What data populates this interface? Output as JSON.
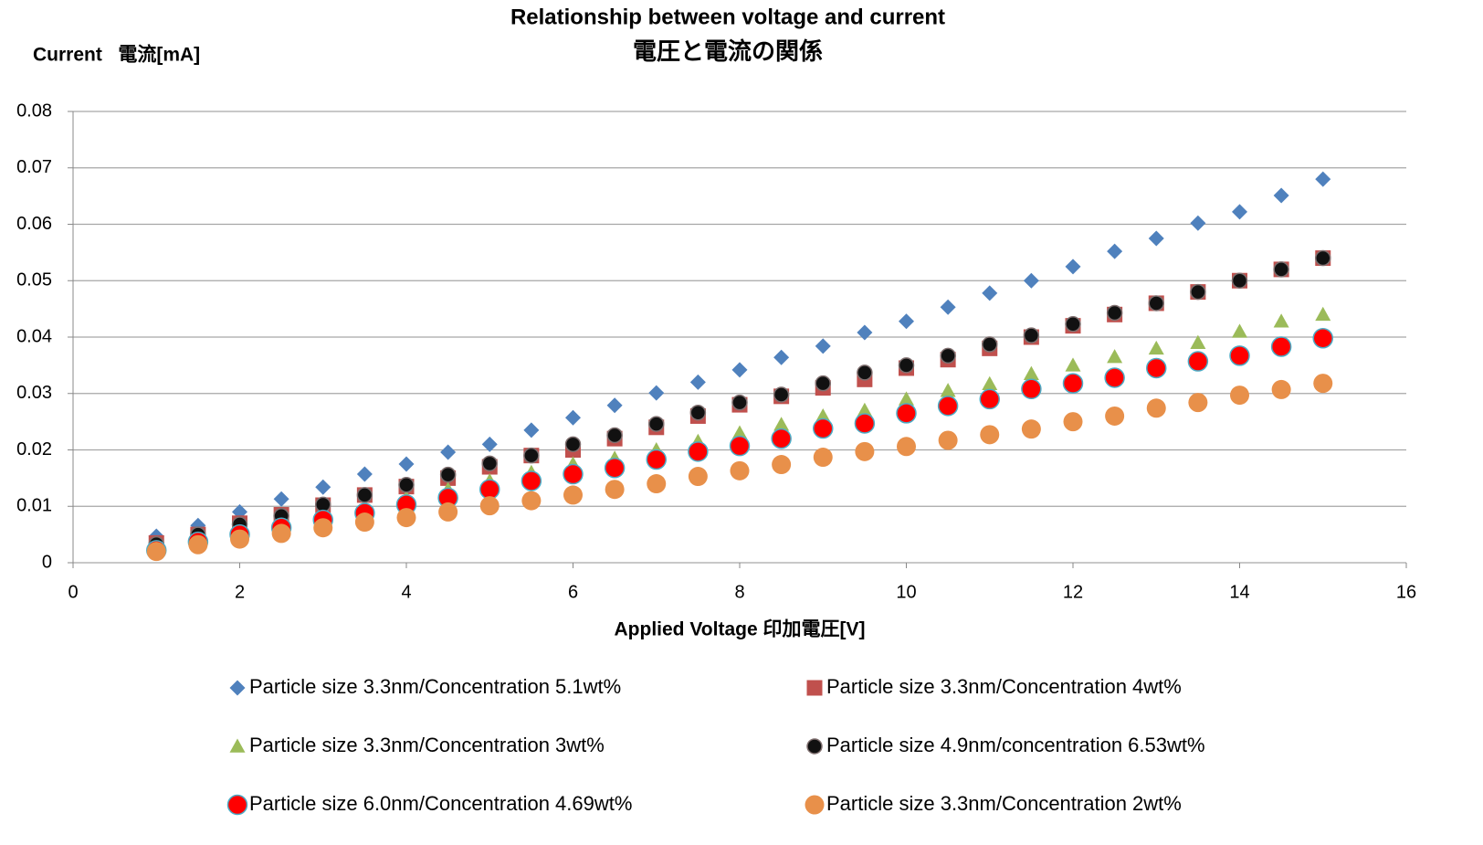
{
  "chart_data": {
    "type": "scatter",
    "title": "Relationship between voltage and current",
    "subtitle": "電圧と電流の関係",
    "y_label": "Current   電流[mA]",
    "x_label": "Applied Voltage 印加電圧[V]",
    "x": [
      1,
      1.5,
      2,
      2.5,
      3,
      3.5,
      4,
      4.5,
      5,
      5.5,
      6,
      6.5,
      7,
      7.5,
      8,
      8.5,
      9,
      9.5,
      10,
      10.5,
      11,
      11.5,
      12,
      12.5,
      13,
      13.5,
      14,
      14.5,
      15
    ],
    "xlim": [
      0,
      16
    ],
    "xticks": [
      0,
      2,
      4,
      6,
      8,
      10,
      12,
      14,
      16
    ],
    "ylim": [
      0,
      0.08
    ],
    "yticks": [
      0,
      0.01,
      0.02,
      0.03,
      0.04,
      0.05,
      0.06,
      0.07,
      0.08
    ],
    "grid": true,
    "legend": "bottom",
    "series": [
      {
        "name": "Particle size 3.3nm/Concentration 5.1wt%",
        "color": "#4f81bd",
        "marker": "diamond",
        "values": [
          0.0047,
          0.0066,
          0.009,
          0.0113,
          0.0134,
          0.0157,
          0.0175,
          0.0196,
          0.021,
          0.0235,
          0.0257,
          0.0279,
          0.0301,
          0.032,
          0.0342,
          0.0364,
          0.0384,
          0.0408,
          0.0428,
          0.0453,
          0.0478,
          0.05,
          0.0525,
          0.0552,
          0.0575,
          0.0602,
          0.0622,
          0.0651,
          0.068
        ]
      },
      {
        "name": "Particle size 3.3nm/Concentration 4wt%",
        "color": "#c0504d",
        "marker": "square",
        "values": [
          0.0035,
          0.005,
          0.007,
          0.0085,
          0.0102,
          0.012,
          0.0135,
          0.015,
          0.017,
          0.019,
          0.02,
          0.022,
          0.024,
          0.026,
          0.028,
          0.0295,
          0.031,
          0.0325,
          0.0345,
          0.036,
          0.038,
          0.04,
          0.042,
          0.044,
          0.046,
          0.048,
          0.05,
          0.052,
          0.054
        ]
      },
      {
        "name": "Particle size 3.3nm/Concentration 3wt%",
        "color": "#9bbb59",
        "marker": "triangle",
        "values": [
          0.003,
          0.0045,
          0.006,
          0.007,
          0.0085,
          0.01,
          0.0115,
          0.013,
          0.0145,
          0.016,
          0.0175,
          0.0185,
          0.02,
          0.0215,
          0.023,
          0.0245,
          0.026,
          0.027,
          0.029,
          0.0305,
          0.0317,
          0.0335,
          0.035,
          0.0365,
          0.038,
          0.039,
          0.041,
          0.0428,
          0.044
        ]
      },
      {
        "name": "Particle size 4.9nm/concentration 6.53wt%",
        "color": "#111111",
        "edgecolor": "#7f6f6f",
        "marker": "circle",
        "values": [
          0.0033,
          0.005,
          0.0068,
          0.0083,
          0.0103,
          0.012,
          0.0138,
          0.0156,
          0.0176,
          0.019,
          0.021,
          0.0226,
          0.0246,
          0.0266,
          0.0284,
          0.0298,
          0.0318,
          0.0337,
          0.035,
          0.0367,
          0.0387,
          0.0403,
          0.0423,
          0.0443,
          0.046,
          0.048,
          0.05,
          0.052,
          0.054
        ]
      },
      {
        "name": "Particle size 6.0nm/Concentration 4.69wt%",
        "color": "#ff0000",
        "edgecolor": "#4bacc6",
        "marker": "circle",
        "values": [
          0.0022,
          0.0037,
          0.005,
          0.0062,
          0.0076,
          0.0088,
          0.0103,
          0.0115,
          0.013,
          0.0145,
          0.0157,
          0.0168,
          0.0183,
          0.0197,
          0.0207,
          0.022,
          0.0238,
          0.0247,
          0.0265,
          0.0278,
          0.029,
          0.0308,
          0.0318,
          0.0328,
          0.0345,
          0.0357,
          0.0367,
          0.0383,
          0.0398
        ]
      },
      {
        "name": "Particle size 3.3nm/Concentration 2wt%",
        "color": "#e8904a",
        "marker": "circle",
        "values": [
          0.002,
          0.0032,
          0.0042,
          0.0052,
          0.0062,
          0.0072,
          0.008,
          0.009,
          0.0101,
          0.011,
          0.012,
          0.013,
          0.014,
          0.0153,
          0.0163,
          0.0174,
          0.0187,
          0.0197,
          0.0206,
          0.0217,
          0.0227,
          0.0237,
          0.025,
          0.026,
          0.0274,
          0.0284,
          0.0297,
          0.0307,
          0.0318
        ]
      }
    ]
  }
}
